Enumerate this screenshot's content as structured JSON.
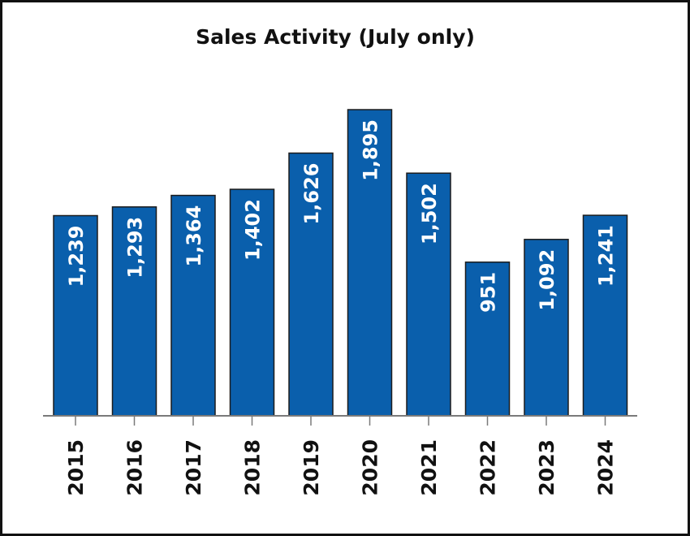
{
  "chart_data": {
    "type": "bar",
    "title": "Sales Activity (July only)",
    "categories": [
      "2015",
      "2016",
      "2017",
      "2018",
      "2019",
      "2020",
      "2021",
      "2022",
      "2023",
      "2024"
    ],
    "values": [
      1239,
      1293,
      1364,
      1402,
      1626,
      1895,
      1502,
      951,
      1092,
      1241
    ],
    "value_labels": [
      "1,239",
      "1,293",
      "1,364",
      "1,402",
      "1,626",
      "1,895",
      "1,502",
      "951",
      "1,092",
      "1,241"
    ],
    "bar_color": "#0a5fac",
    "ylim": [
      0,
      1895
    ],
    "grid": false,
    "legend": "none"
  }
}
